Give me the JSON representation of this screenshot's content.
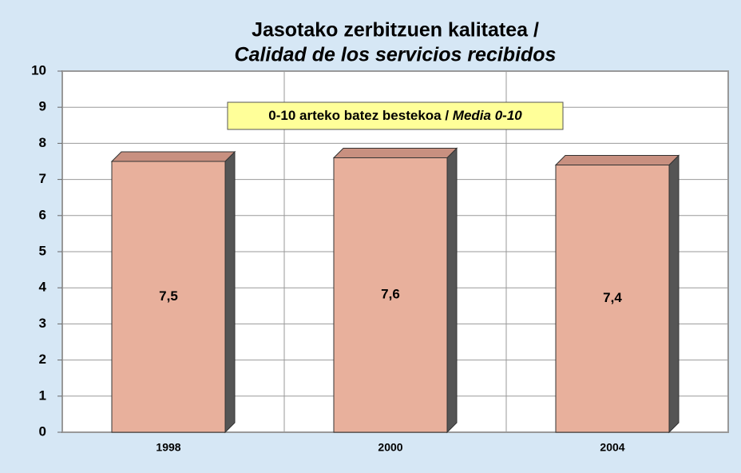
{
  "chart_data": {
    "type": "bar",
    "title": "Jasotako zerbitzuen kalitatea /",
    "subtitle": "Calidad de los servicios recibidos",
    "annotation": [
      "0-10 arteko batez bestekoa / ",
      "Media 0-10"
    ],
    "categories": [
      "1998",
      "2000",
      "2004"
    ],
    "values": [
      7.5,
      7.6,
      7.4
    ],
    "value_labels": [
      "7,5",
      "7,6",
      "7,4"
    ],
    "color": "#e8b09c",
    "ylim": [
      0,
      10
    ],
    "yticks": [
      0,
      1,
      2,
      3,
      4,
      5,
      6,
      7,
      8,
      9,
      10
    ],
    "grid": true
  }
}
